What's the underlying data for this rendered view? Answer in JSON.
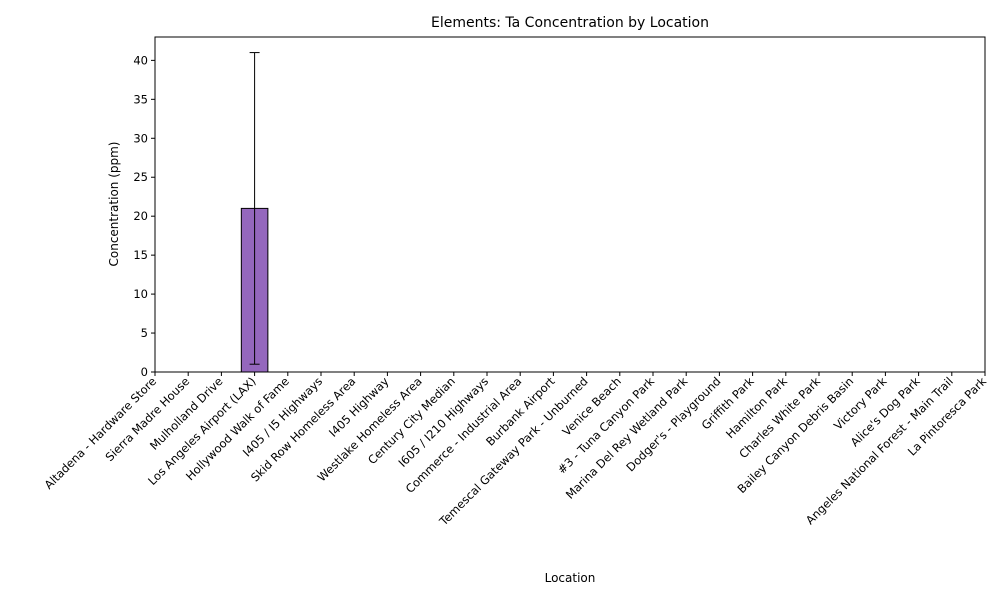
{
  "chart_data": {
    "type": "bar",
    "title": "Elements: Ta Concentration by Location",
    "xlabel": "Location",
    "ylabel": "Concentration (ppm)",
    "ylim": [
      0,
      43
    ],
    "yticks": [
      0,
      5,
      10,
      15,
      20,
      25,
      30,
      35,
      40
    ],
    "categories": [
      "Altadena - Hardware Store",
      "Sierra Madre House",
      "Mulholland Drive",
      "Los Angeles Airport (LAX)",
      "Hollywood Walk of Fame",
      "I405 / I5 Highways",
      "Skid Row Homeless Area",
      "I405 Highway",
      "Westlake Homeless Area",
      "Century City Median",
      "I605 / I210 Highways",
      "Commerce - Industrial Area",
      "Burbank Airport",
      "Temescal Gateway Park - Unburned",
      "Venice Beach",
      "#3 - Tuna Canyon Park",
      "Marina Del Rey Wetland Park",
      "Dodger's - Playground",
      "Griffith Park",
      "Hamilton Park",
      "Charles White Park",
      "Bailey Canyon Debris Basin",
      "Victory Park",
      "Alice's Dog Park",
      "Angeles National Forest - Main Trail",
      "La Pintoresca Park"
    ],
    "values": [
      0,
      0,
      0,
      21,
      0,
      0,
      0,
      0,
      0,
      0,
      0,
      0,
      0,
      0,
      0,
      0,
      0,
      0,
      0,
      0,
      0,
      0,
      0,
      0,
      0,
      0
    ],
    "errors": [
      0,
      0,
      0,
      20,
      0,
      0,
      0,
      0,
      0,
      0,
      0,
      0,
      0,
      0,
      0,
      0,
      0,
      0,
      0,
      0,
      0,
      0,
      0,
      0,
      0,
      0
    ],
    "bar_color": "#9467bd",
    "edge_color": "#000000",
    "grid": false,
    "legend": "none"
  }
}
